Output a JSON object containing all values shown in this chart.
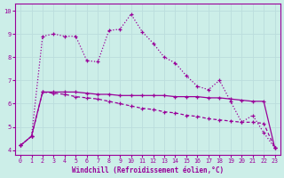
{
  "line_dotted_x": [
    0,
    1,
    2,
    3,
    4,
    5,
    6,
    7,
    8,
    9,
    10,
    11,
    12,
    13,
    14,
    15,
    16,
    17,
    18,
    19,
    20,
    21,
    22,
    23
  ],
  "line_dotted_y": [
    4.2,
    4.6,
    8.9,
    9.0,
    8.9,
    8.9,
    7.85,
    7.8,
    9.15,
    9.2,
    9.85,
    9.1,
    8.6,
    8.0,
    7.75,
    7.2,
    6.75,
    6.6,
    7.0,
    6.1,
    5.2,
    5.5,
    4.75,
    4.1
  ],
  "line_solid_x": [
    0,
    1,
    2,
    3,
    4,
    5,
    6,
    7,
    8,
    9,
    10,
    11,
    12,
    13,
    14,
    15,
    16,
    17,
    18,
    19,
    20,
    21,
    22,
    23
  ],
  "line_solid_y": [
    4.2,
    4.6,
    6.5,
    6.5,
    6.5,
    6.5,
    6.45,
    6.4,
    6.4,
    6.35,
    6.35,
    6.35,
    6.35,
    6.35,
    6.3,
    6.3,
    6.3,
    6.25,
    6.25,
    6.2,
    6.15,
    6.1,
    6.1,
    4.1
  ],
  "line_dashed_x": [
    0,
    1,
    2,
    3,
    4,
    5,
    6,
    7,
    8,
    9,
    10,
    11,
    12,
    13,
    14,
    15,
    16,
    17,
    18,
    19,
    20,
    21,
    22,
    23
  ],
  "line_dashed_y": [
    4.2,
    4.6,
    6.5,
    6.45,
    6.4,
    6.3,
    6.25,
    6.2,
    6.1,
    6.0,
    5.9,
    5.8,
    5.75,
    5.65,
    5.6,
    5.5,
    5.45,
    5.35,
    5.3,
    5.25,
    5.2,
    5.2,
    5.15,
    4.1
  ],
  "color": "#990099",
  "bg_color": "#cceee8",
  "grid_color": "#bbdddd",
  "xlabel": "Windchill (Refroidissement éolien,°C)",
  "ylim": [
    3.8,
    10.3
  ],
  "xlim": [
    -0.5,
    23.5
  ],
  "xticks": [
    0,
    1,
    2,
    3,
    4,
    5,
    6,
    7,
    8,
    9,
    10,
    11,
    12,
    13,
    14,
    15,
    16,
    17,
    18,
    19,
    20,
    21,
    22,
    23
  ],
  "yticks": [
    4,
    5,
    6,
    7,
    8,
    9,
    10
  ]
}
